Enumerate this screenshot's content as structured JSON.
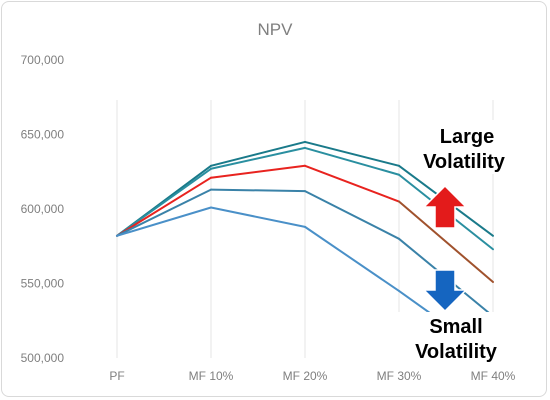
{
  "chart_data": {
    "type": "line",
    "title": "NPV",
    "xlabel": "",
    "ylabel": "",
    "categories": [
      "PF",
      "MF 10%",
      "MF 20%",
      "MF 30%",
      "MF 40%"
    ],
    "ylim": [
      500000,
      700000
    ],
    "yticks": [
      "700,000",
      "650,000",
      "600,000",
      "550,000",
      "500,000"
    ],
    "ytick_values": [
      700000,
      650000,
      600000,
      550000,
      500000
    ],
    "grid": "vertical",
    "series": [
      {
        "color": "#1a7a8a",
        "values": [
          582000,
          629000,
          645000,
          629000,
          582000
        ]
      },
      {
        "color": "#2a8fa0",
        "values": [
          582000,
          627000,
          641000,
          623000,
          573000
        ]
      },
      {
        "color": "#e8231f",
        "segment_colors": [
          "#e8231f",
          "#e8231f",
          "#e8231f",
          "#a0522d"
        ],
        "values": [
          582000,
          621000,
          629000,
          605000,
          551000
        ]
      },
      {
        "color": "#3a82a8",
        "values": [
          582000,
          613000,
          612000,
          580000,
          528000
        ]
      },
      {
        "color": "#4a90c8",
        "values": [
          582000,
          601000,
          588000,
          545000,
          500000
        ]
      }
    ],
    "annotations": [
      {
        "text_lines": [
          "Large",
          "Volatility"
        ]
      },
      {
        "text_lines": [
          "Small",
          "Volatility"
        ]
      }
    ],
    "arrow_colors": {
      "up": "#e31b1b",
      "down": "#1565c0"
    }
  }
}
